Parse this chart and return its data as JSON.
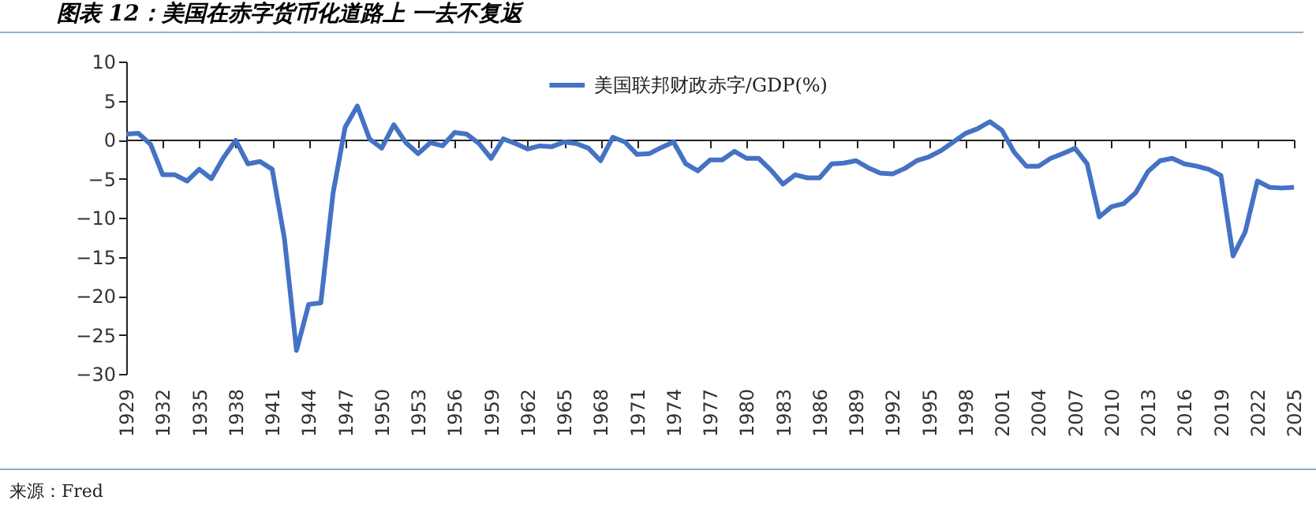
{
  "chart_data": {
    "type": "line",
    "title": "图表 12：美国在赤字货币化道路上 一去不复返",
    "annotations": [
      "来源：Fred"
    ],
    "x": [
      1929,
      1930,
      1931,
      1932,
      1933,
      1934,
      1935,
      1936,
      1937,
      1938,
      1939,
      1940,
      1941,
      1942,
      1943,
      1944,
      1945,
      1946,
      1947,
      1948,
      1949,
      1950,
      1951,
      1952,
      1953,
      1954,
      1955,
      1956,
      1957,
      1958,
      1959,
      1960,
      1961,
      1962,
      1963,
      1964,
      1965,
      1966,
      1967,
      1968,
      1969,
      1970,
      1971,
      1972,
      1973,
      1974,
      1975,
      1976,
      1977,
      1978,
      1979,
      1980,
      1981,
      1982,
      1983,
      1984,
      1985,
      1986,
      1987,
      1988,
      1989,
      1990,
      1991,
      1992,
      1993,
      1994,
      1995,
      1996,
      1997,
      1998,
      1999,
      2000,
      2001,
      2002,
      2003,
      2004,
      2005,
      2006,
      2007,
      2008,
      2009,
      2010,
      2011,
      2012,
      2013,
      2014,
      2015,
      2016,
      2017,
      2018,
      2019,
      2020,
      2021,
      2022,
      2023,
      2024,
      2025
    ],
    "series": [
      {
        "name": "美国联邦财政赤字/GDP(%)",
        "color": "#4472c4",
        "values": [
          0.7,
          0.8,
          -0.6,
          -4.5,
          -4.5,
          -5.3,
          -3.8,
          -5.0,
          -2.3,
          -0.1,
          -3.1,
          -2.8,
          -3.8,
          -12.6,
          -27.0,
          -21.1,
          -20.9,
          -6.9,
          1.6,
          4.3,
          0.1,
          -1.1,
          1.9,
          -0.4,
          -1.8,
          -0.4,
          -0.8,
          0.9,
          0.7,
          -0.5,
          -2.4,
          0.1,
          -0.5,
          -1.2,
          -0.8,
          -0.9,
          -0.3,
          -0.5,
          -1.1,
          -2.7,
          0.3,
          -0.3,
          -1.9,
          -1.8,
          -1.0,
          -0.3,
          -3.1,
          -4.0,
          -2.6,
          -2.6,
          -1.5,
          -2.4,
          -2.4,
          -3.9,
          -5.7,
          -4.5,
          -4.9,
          -4.9,
          -3.1,
          -3.0,
          -2.7,
          -3.6,
          -4.3,
          -4.4,
          -3.7,
          -2.7,
          -2.2,
          -1.4,
          -0.3,
          0.8,
          1.4,
          2.3,
          1.2,
          -1.6,
          -3.4,
          -3.4,
          -2.4,
          -1.8,
          -1.1,
          -3.1,
          -9.9,
          -8.6,
          -8.2,
          -6.8,
          -4.1,
          -2.7,
          -2.4,
          -3.1,
          -3.4,
          -3.8,
          -4.6,
          -14.9,
          -11.8,
          -5.3,
          -6.1,
          -6.2,
          -6.1
        ]
      }
    ],
    "xlim": [
      1929,
      2025
    ],
    "xticks": [
      1929,
      1932,
      1935,
      1938,
      1941,
      1944,
      1947,
      1950,
      1953,
      1956,
      1959,
      1962,
      1965,
      1968,
      1971,
      1974,
      1977,
      1980,
      1983,
      1986,
      1989,
      1992,
      1995,
      1998,
      2001,
      2004,
      2007,
      2010,
      2013,
      2016,
      2019,
      2022,
      2025
    ],
    "ylim": [
      -30,
      10
    ],
    "yticks": [
      -30,
      -25,
      -20,
      -15,
      -10,
      -5,
      0,
      5,
      10
    ],
    "legend": "top",
    "marker": "none",
    "line_style": "solid"
  }
}
